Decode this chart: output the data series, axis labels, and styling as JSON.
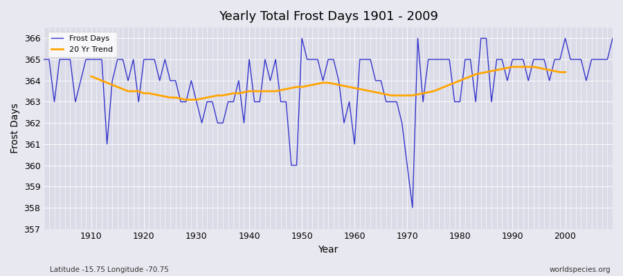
{
  "title": "Yearly Total Frost Days 1901 - 2009",
  "xlabel": "Year",
  "ylabel": "Frost Days",
  "years": [
    1901,
    1902,
    1903,
    1904,
    1905,
    1906,
    1907,
    1908,
    1909,
    1910,
    1911,
    1912,
    1913,
    1914,
    1915,
    1916,
    1917,
    1918,
    1919,
    1920,
    1921,
    1922,
    1923,
    1924,
    1925,
    1926,
    1927,
    1928,
    1929,
    1930,
    1931,
    1932,
    1933,
    1934,
    1935,
    1936,
    1937,
    1938,
    1939,
    1940,
    1941,
    1942,
    1943,
    1944,
    1945,
    1946,
    1947,
    1948,
    1949,
    1950,
    1951,
    1952,
    1953,
    1954,
    1955,
    1956,
    1957,
    1958,
    1959,
    1960,
    1961,
    1962,
    1963,
    1964,
    1965,
    1966,
    1967,
    1968,
    1969,
    1970,
    1971,
    1972,
    1973,
    1974,
    1975,
    1976,
    1977,
    1978,
    1979,
    1980,
    1981,
    1982,
    1983,
    1984,
    1985,
    1986,
    1987,
    1988,
    1989,
    1990,
    1991,
    1992,
    1993,
    1994,
    1995,
    1996,
    1997,
    1998,
    1999,
    2000,
    2001,
    2002,
    2003,
    2004,
    2005,
    2006,
    2007,
    2008,
    2009
  ],
  "frost_days": [
    365,
    365,
    363,
    365,
    365,
    365,
    363,
    364,
    365,
    365,
    365,
    365,
    361,
    364,
    365,
    365,
    364,
    365,
    363,
    365,
    365,
    365,
    364,
    365,
    364,
    364,
    363,
    363,
    364,
    363,
    362,
    363,
    363,
    362,
    362,
    363,
    363,
    364,
    362,
    365,
    363,
    363,
    365,
    364,
    365,
    363,
    363,
    360,
    360,
    366,
    365,
    365,
    365,
    364,
    365,
    365,
    364,
    362,
    363,
    361,
    365,
    365,
    365,
    364,
    364,
    363,
    363,
    363,
    362,
    360,
    358,
    366,
    363,
    365,
    365,
    365,
    365,
    365,
    363,
    363,
    365,
    365,
    363,
    366,
    366,
    363,
    365,
    365,
    364,
    365,
    365,
    365,
    364,
    365,
    365,
    365,
    364,
    365,
    365,
    366,
    365,
    365,
    365,
    364,
    365,
    365,
    365,
    365,
    366
  ],
  "trend_years": [
    1910,
    1911,
    1912,
    1913,
    1914,
    1915,
    1916,
    1917,
    1918,
    1919,
    1920,
    1921,
    1922,
    1923,
    1924,
    1925,
    1926,
    1927,
    1928,
    1929,
    1930,
    1931,
    1932,
    1933,
    1934,
    1935,
    1936,
    1937,
    1938,
    1939,
    1940,
    1941,
    1942,
    1943,
    1944,
    1945,
    1946,
    1947,
    1948,
    1949,
    1950,
    1951,
    1952,
    1953,
    1954,
    1955,
    1956,
    1957,
    1958,
    1959,
    1960,
    1961,
    1962,
    1963,
    1964,
    1965,
    1966,
    1967,
    1968,
    1969,
    1970,
    1971,
    1972,
    1973,
    1974,
    1975,
    1976,
    1977,
    1978,
    1979,
    1980,
    1981,
    1982,
    1983,
    1984,
    1985,
    1986,
    1987,
    1988,
    1989,
    1990,
    1991,
    1992,
    1993,
    1994,
    1995,
    1996,
    1997,
    1998,
    1999,
    2000
  ],
  "trend_values": [
    364.2,
    364.1,
    364.0,
    363.9,
    363.8,
    363.7,
    363.6,
    363.5,
    363.5,
    363.5,
    363.4,
    363.4,
    363.35,
    363.3,
    363.25,
    363.2,
    363.2,
    363.15,
    363.1,
    363.1,
    363.1,
    363.15,
    363.2,
    363.25,
    363.3,
    363.3,
    363.35,
    363.4,
    363.4,
    363.45,
    363.5,
    363.5,
    363.5,
    363.5,
    363.5,
    363.5,
    363.55,
    363.6,
    363.65,
    363.7,
    363.7,
    363.75,
    363.8,
    363.85,
    363.9,
    363.9,
    363.85,
    363.8,
    363.75,
    363.7,
    363.65,
    363.6,
    363.55,
    363.5,
    363.45,
    363.4,
    363.35,
    363.3,
    363.3,
    363.3,
    363.3,
    363.3,
    363.35,
    363.4,
    363.45,
    363.5,
    363.6,
    363.7,
    363.8,
    363.9,
    364.0,
    364.1,
    364.2,
    364.3,
    364.35,
    364.4,
    364.45,
    364.5,
    364.55,
    364.6,
    364.65,
    364.65,
    364.65,
    364.65,
    364.65,
    364.6,
    364.55,
    364.5,
    364.45,
    364.4,
    364.4
  ],
  "frost_color": "#3333cc",
  "trend_color": "#ffa500",
  "bg_color": "#e8e8f0",
  "plot_bg_color": "#dcdce8",
  "ylim": [
    357,
    366.5
  ],
  "yticks": [
    357,
    358,
    359,
    360,
    361,
    362,
    363,
    364,
    365,
    366
  ],
  "xticks": [
    1910,
    1920,
    1930,
    1940,
    1950,
    1960,
    1970,
    1980,
    1990,
    2000
  ],
  "footnote_left": "Latitude -15.75 Longitude -70.75",
  "footnote_right": "worldspecies.org"
}
